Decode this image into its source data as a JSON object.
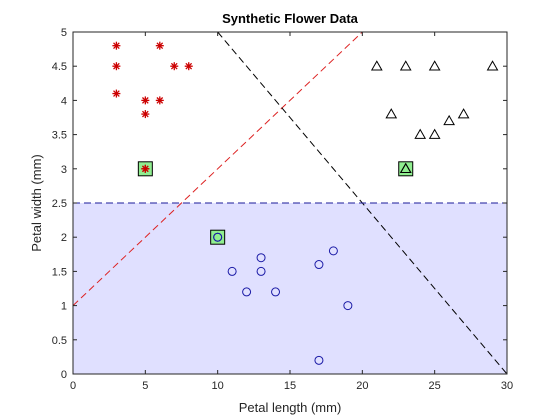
{
  "chart_data": {
    "type": "scatter",
    "title": "Synthetic Flower Data",
    "xlabel": "Petal length (mm)",
    "ylabel": "Petal width (mm)",
    "xlim": [
      0,
      30
    ],
    "ylim": [
      0,
      5
    ],
    "xticks": [
      "0",
      "5",
      "10",
      "15",
      "20",
      "25",
      "30"
    ],
    "yticks": [
      "0",
      "0.5",
      "1",
      "1.5",
      "2",
      "2.5",
      "3",
      "3.5",
      "4",
      "4.5",
      "5"
    ],
    "grid": false,
    "shaded_region": {
      "x": [
        0,
        30
      ],
      "y": [
        0,
        2.5
      ],
      "color": "#e0e0ff"
    },
    "series": [
      {
        "marker": "asterisk",
        "color": "#cc0000",
        "points": [
          [
            3,
            4.8
          ],
          [
            6,
            4.8
          ],
          [
            3,
            4.5
          ],
          [
            7,
            4.5
          ],
          [
            8,
            4.5
          ],
          [
            3,
            4.1
          ],
          [
            5,
            4.0
          ],
          [
            6,
            4.0
          ],
          [
            5,
            3.8
          ],
          [
            5,
            3.0
          ]
        ]
      },
      {
        "marker": "triangle",
        "color": "#000000",
        "points": [
          [
            21,
            4.5
          ],
          [
            23,
            4.5
          ],
          [
            25,
            4.5
          ],
          [
            29,
            4.5
          ],
          [
            22,
            3.8
          ],
          [
            27,
            3.8
          ],
          [
            26,
            3.7
          ],
          [
            24,
            3.5
          ],
          [
            25,
            3.5
          ],
          [
            23,
            3.0
          ]
        ]
      },
      {
        "marker": "circle",
        "color": "#1a1aa6",
        "points": [
          [
            10,
            2.0
          ],
          [
            18,
            1.8
          ],
          [
            13,
            1.7
          ],
          [
            17,
            1.6
          ],
          [
            11,
            1.5
          ],
          [
            13,
            1.5
          ],
          [
            12,
            1.2
          ],
          [
            14,
            1.2
          ],
          [
            19,
            1.0
          ],
          [
            17,
            0.2
          ]
        ]
      }
    ],
    "centroids": [
      {
        "x": 5,
        "y": 3.0,
        "marker": "asterisk",
        "color": "#cc0000"
      },
      {
        "x": 23,
        "y": 3.0,
        "marker": "triangle",
        "color": "#000000"
      },
      {
        "x": 10,
        "y": 2.0,
        "marker": "circle",
        "color": "#1a1aa6"
      }
    ],
    "centroid_box_color": "#90ee90",
    "lines": [
      {
        "points": [
          [
            0,
            1.0
          ],
          [
            20,
            5.0
          ]
        ],
        "color": "#dd2222",
        "style": "dashed"
      },
      {
        "points": [
          [
            10,
            5.0
          ],
          [
            30,
            0.0
          ]
        ],
        "color": "#000000",
        "style": "dashed"
      },
      {
        "points": [
          [
            0,
            2.5
          ],
          [
            30,
            2.5
          ]
        ],
        "color": "#1a1a99",
        "style": "dashed"
      }
    ]
  }
}
